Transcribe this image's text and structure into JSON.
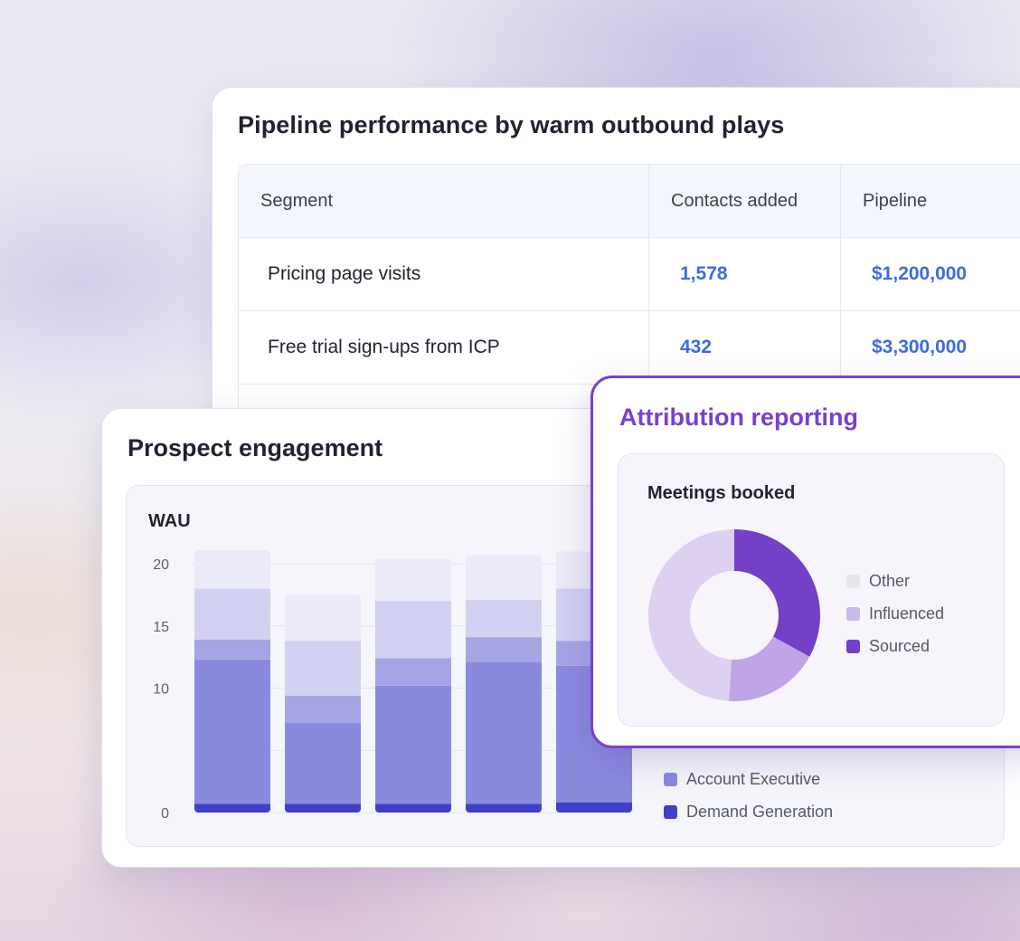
{
  "pipeline": {
    "title": "Pipeline performance by warm outbound plays",
    "columns": [
      "Segment",
      "Contacts added",
      "Pipeline"
    ],
    "rows": [
      {
        "segment": "Pricing page visits",
        "contacts": "1,578",
        "pipeline": "$1,200,000"
      },
      {
        "segment": "Free trial sign-ups from ICP",
        "contacts": "432",
        "pipeline": "$3,300,000"
      }
    ]
  },
  "engagement": {
    "title": "Prospect engagement",
    "legend_visible": [
      {
        "label": "Account Executive",
        "color": "#8a8add"
      },
      {
        "label": "Demand Generation",
        "color": "#3f3fc9"
      }
    ]
  },
  "attribution": {
    "title": "Attribution reporting",
    "legend": [
      {
        "label": "Other",
        "color": "#e6e6ea"
      },
      {
        "label": "Influenced",
        "color": "#cbb8ec"
      },
      {
        "label": "Sourced",
        "color": "#7540c8"
      }
    ]
  },
  "chart_data": [
    {
      "type": "bar",
      "stacked": true,
      "ylabel": "WAU",
      "ylim": [
        0,
        20
      ],
      "yticks": [
        0,
        5,
        10,
        15,
        20
      ],
      "ytick_labels": [
        "0",
        "",
        "10",
        "15",
        "20"
      ],
      "categories": [
        "",
        "",
        "",
        "",
        ""
      ],
      "series": [
        {
          "name": "Demand Generation",
          "color": "#3f3fc9",
          "values": [
            0.7,
            0.7,
            0.7,
            0.7,
            0.8
          ]
        },
        {
          "name": "Account Executive",
          "color": "#8a8add",
          "values": [
            11.6,
            6.5,
            9.5,
            11.4,
            11.0
          ]
        },
        {
          "color": "#a5a5e4",
          "values": [
            1.6,
            2.2,
            2.2,
            2.0,
            2.0
          ]
        },
        {
          "color": "#d1d1f2",
          "values": [
            4.1,
            4.4,
            4.6,
            3.0,
            4.2
          ]
        },
        {
          "color": "#ebeaf8",
          "values": [
            3.1,
            3.7,
            3.4,
            3.6,
            3.0
          ]
        }
      ]
    },
    {
      "type": "pie",
      "donut": true,
      "title": "Meetings booked",
      "labels": [
        "Sourced",
        "Influenced",
        "Other"
      ],
      "values": [
        33,
        18,
        49
      ],
      "colors": [
        "#7540c8",
        "#c0a4e6",
        "#ddd0f1"
      ]
    }
  ]
}
